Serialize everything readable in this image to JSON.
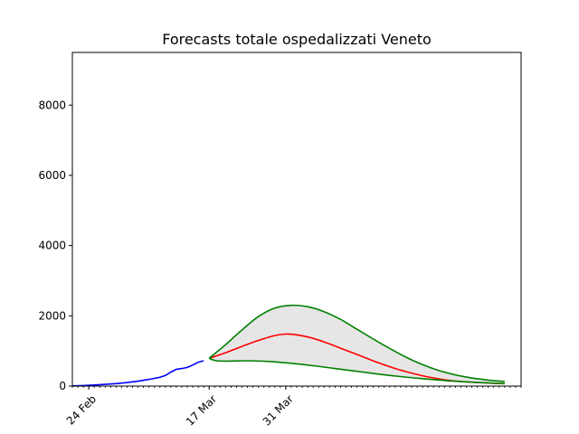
{
  "chart_data": {
    "type": "line",
    "title": "Forecasts totale ospedalizzati Veneto",
    "xlabel": "",
    "ylabel": "",
    "x_axis": {
      "type": "date",
      "range": [
        "2020-02-21",
        "2020-05-13"
      ],
      "tick_labels": [
        {
          "date": "2020-02-24",
          "label": "24 Feb"
        },
        {
          "date": "2020-03-17",
          "label": "17 Mar"
        },
        {
          "date": "2020-03-31",
          "label": "31 Mar"
        }
      ],
      "minor_ticks": "daily"
    },
    "y_axis": {
      "range": [
        0,
        9500
      ],
      "ticks": [
        0,
        2000,
        4000,
        6000,
        8000
      ]
    },
    "grid": false,
    "legend": "none",
    "series": [
      {
        "role": "observed",
        "color": "#0000ff",
        "points": [
          [
            "2020-02-21",
            5
          ],
          [
            "2020-02-23",
            15
          ],
          [
            "2020-02-25",
            30
          ],
          [
            "2020-02-27",
            50
          ],
          [
            "2020-02-29",
            70
          ],
          [
            "2020-03-02",
            100
          ],
          [
            "2020-03-04",
            140
          ],
          [
            "2020-03-06",
            190
          ],
          [
            "2020-03-08",
            250
          ],
          [
            "2020-03-09",
            300
          ],
          [
            "2020-03-10",
            400
          ],
          [
            "2020-03-11",
            480
          ],
          [
            "2020-03-12",
            500
          ],
          [
            "2020-03-13",
            530
          ],
          [
            "2020-03-14",
            600
          ],
          [
            "2020-03-15",
            680
          ],
          [
            "2020-03-16",
            720
          ]
        ]
      },
      {
        "role": "forecast-central",
        "color": "#ff0000",
        "points": [
          [
            "2020-03-17",
            790
          ],
          [
            "2020-03-20",
            950
          ],
          [
            "2020-03-23",
            1130
          ],
          [
            "2020-03-26",
            1300
          ],
          [
            "2020-03-29",
            1440
          ],
          [
            "2020-03-31",
            1480
          ],
          [
            "2020-04-02",
            1460
          ],
          [
            "2020-04-05",
            1360
          ],
          [
            "2020-04-08",
            1200
          ],
          [
            "2020-04-11",
            1020
          ],
          [
            "2020-04-14",
            840
          ],
          [
            "2020-04-17",
            660
          ],
          [
            "2020-04-20",
            500
          ],
          [
            "2020-04-23",
            370
          ],
          [
            "2020-04-26",
            260
          ],
          [
            "2020-04-29",
            180
          ],
          [
            "2020-05-02",
            130
          ],
          [
            "2020-05-05",
            100
          ],
          [
            "2020-05-08",
            80
          ],
          [
            "2020-05-10",
            70
          ]
        ]
      },
      {
        "role": "forecast-upper",
        "color": "#008000",
        "points": [
          [
            "2020-03-17",
            790
          ],
          [
            "2020-03-20",
            1180
          ],
          [
            "2020-03-23",
            1600
          ],
          [
            "2020-03-26",
            1980
          ],
          [
            "2020-03-29",
            2220
          ],
          [
            "2020-04-01",
            2300
          ],
          [
            "2020-04-04",
            2260
          ],
          [
            "2020-04-07",
            2120
          ],
          [
            "2020-04-10",
            1900
          ],
          [
            "2020-04-13",
            1620
          ],
          [
            "2020-04-16",
            1340
          ],
          [
            "2020-04-19",
            1070
          ],
          [
            "2020-04-22",
            820
          ],
          [
            "2020-04-25",
            610
          ],
          [
            "2020-04-28",
            440
          ],
          [
            "2020-05-01",
            320
          ],
          [
            "2020-05-04",
            230
          ],
          [
            "2020-05-07",
            170
          ],
          [
            "2020-05-10",
            130
          ]
        ]
      },
      {
        "role": "forecast-lower",
        "color": "#008000",
        "points": [
          [
            "2020-03-17",
            790
          ],
          [
            "2020-03-18",
            730
          ],
          [
            "2020-03-20",
            710
          ],
          [
            "2020-03-24",
            720
          ],
          [
            "2020-03-28",
            700
          ],
          [
            "2020-04-01",
            650
          ],
          [
            "2020-04-05",
            580
          ],
          [
            "2020-04-09",
            500
          ],
          [
            "2020-04-13",
            420
          ],
          [
            "2020-04-17",
            340
          ],
          [
            "2020-04-21",
            270
          ],
          [
            "2020-04-25",
            210
          ],
          [
            "2020-04-29",
            160
          ],
          [
            "2020-05-03",
            120
          ],
          [
            "2020-05-07",
            90
          ],
          [
            "2020-05-10",
            70
          ]
        ]
      }
    ],
    "band": {
      "between": [
        "forecast-upper",
        "forecast-lower"
      ],
      "fill_color": "#e6e6e6"
    }
  }
}
